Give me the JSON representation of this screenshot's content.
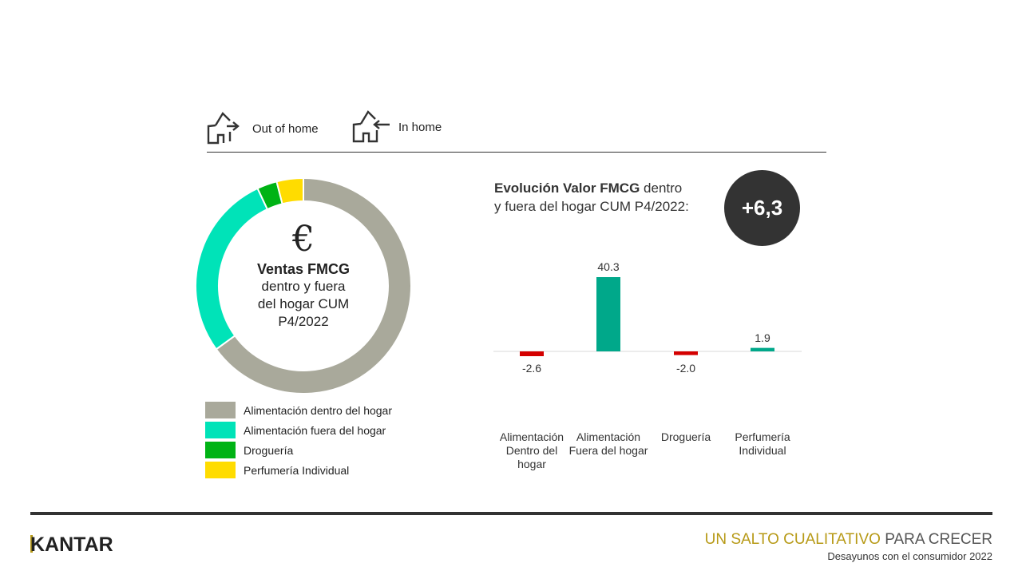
{
  "header": {
    "out_of_home_label": "Out of home",
    "in_home_label": "In home",
    "icons": [
      "house-arrow-out-icon",
      "house-arrow-in-icon"
    ]
  },
  "donut": {
    "euro_symbol": "€",
    "center_title": "Ventas FMCG",
    "center_text_1": "dentro y fuera",
    "center_text_2": "del hogar CUM",
    "center_text_3": "P4/2022"
  },
  "bar_panel": {
    "title_bold": "Evolución Valor FMCG",
    "title_rest_1": " dentro",
    "title_rest_2": "y fuera del hogar CUM P4/2022:",
    "total_badge": "+6,3"
  },
  "chart_data": [
    {
      "type": "pie",
      "style": "donut",
      "categories": [
        "Alimentación dentro del hogar",
        "Alimentación fuera del hogar",
        "Droguería",
        "Perfumería Individual"
      ],
      "values": [
        65,
        28,
        3,
        4
      ],
      "colors": [
        "#a9a99b",
        "#00e3b8",
        "#00b315",
        "#ffdc00"
      ],
      "legend": "bottom"
    },
    {
      "type": "bar",
      "categories": [
        "Alimentación Dentro del hogar",
        "Alimentación Fuera del hogar",
        "Droguería",
        "Perfumería Individual"
      ],
      "values": [
        -2.6,
        40.3,
        -2.0,
        1.9
      ],
      "labels": [
        "-2.6",
        "40.3",
        "-2.0",
        "1.9"
      ],
      "positive_color": "#00a88a",
      "negative_color": "#d40000",
      "grid": false
    }
  ],
  "footer": {
    "brand": "KANTAR",
    "tagline_gold": "UN SALTO CUALITATIVO",
    "tagline_gray": " PARA CRECER",
    "subtitle": "Desayunos con el consumidor 2022",
    "gold_color": "#b79a17"
  }
}
